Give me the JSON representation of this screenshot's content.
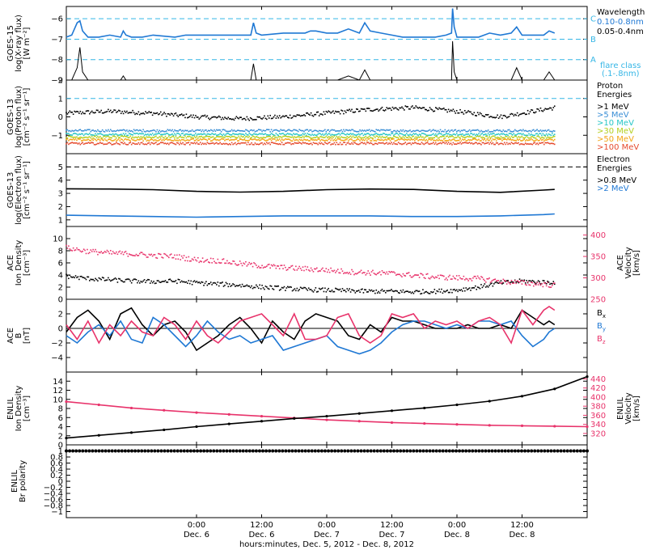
{
  "figure": {
    "x_axis": {
      "title": "hours:minutes, Dec.  5, 2012 - Dec.  8, 2012",
      "start_hour": 0,
      "end_hour": 96,
      "ticks": [
        {
          "hour": 24,
          "time": "0:00",
          "date": "Dec. 6"
        },
        {
          "hour": 36,
          "time": "12:00",
          "date": "Dec. 6"
        },
        {
          "hour": 48,
          "time": "0:00",
          "date": "Dec. 7"
        },
        {
          "hour": 60,
          "time": "12:00",
          "date": "Dec. 7"
        },
        {
          "hour": 72,
          "time": "0:00",
          "date": "Dec. 8"
        },
        {
          "hour": 84,
          "time": "12:00",
          "date": "Dec. 8"
        }
      ]
    },
    "colors": {
      "xray_long": "#1f78d4",
      "xray_short": "#000000",
      "ref_line": "#35b6e6",
      "electron_hi": "#1f78d4",
      "ace_velocity": "#e8336b",
      "by": "#1f78d4",
      "bz": "#e8336b"
    }
  },
  "chart_data": [
    {
      "id": "goes_xray",
      "type": "line",
      "ylabel": [
        "GOES-15",
        "log(X-ray flux)",
        "[W m⁻²]"
      ],
      "ylim": [
        -9,
        -5.4
      ],
      "yticks": [
        -9,
        -8,
        -7,
        -6
      ],
      "x_hours": [
        0,
        1,
        2,
        2.5,
        3,
        4,
        6,
        8,
        10,
        10.5,
        11,
        12,
        14,
        16,
        20,
        22,
        24,
        26,
        28,
        30,
        32,
        34,
        34.5,
        35,
        36,
        40,
        44,
        45,
        46,
        48,
        50,
        52,
        54,
        55,
        56,
        58,
        60,
        62,
        64,
        66,
        68,
        70,
        71,
        71.2,
        71.5,
        72,
        74,
        76,
        78,
        80,
        82,
        83,
        84,
        86,
        88,
        89,
        90
      ],
      "series": [
        {
          "name": "0.10-0.8nm",
          "color": "#1f78d4",
          "values": [
            -6.9,
            -6.8,
            -6.2,
            -6.1,
            -6.6,
            -6.9,
            -6.9,
            -6.8,
            -6.9,
            -6.6,
            -6.8,
            -6.9,
            -6.9,
            -6.8,
            -6.9,
            -6.8,
            -6.8,
            -6.8,
            -6.8,
            -6.8,
            -6.8,
            -6.8,
            -6.2,
            -6.7,
            -6.8,
            -6.7,
            -6.7,
            -6.6,
            -6.6,
            -6.7,
            -6.7,
            -6.5,
            -6.7,
            -6.2,
            -6.6,
            -6.7,
            -6.8,
            -6.9,
            -6.9,
            -6.9,
            -6.9,
            -6.8,
            -6.7,
            -5.5,
            -6.4,
            -6.9,
            -6.9,
            -6.9,
            -6.7,
            -6.8,
            -6.7,
            -6.4,
            -6.8,
            -6.8,
            -6.8,
            -6.6,
            -6.7
          ]
        },
        {
          "name": "0.05-0.4nm",
          "color": "#000000",
          "values": [
            -9,
            -9,
            -8.4,
            -7.4,
            -8.6,
            -9,
            -9,
            -9,
            -9,
            -8.8,
            -9,
            -9,
            -9,
            -9,
            -9,
            -9,
            -9,
            -9,
            -9,
            -9,
            -9,
            -9,
            -8.2,
            -9,
            -9,
            -9,
            -9,
            -9,
            -9,
            -9,
            -9,
            -8.8,
            -9,
            -8.5,
            -9,
            -9,
            -9,
            -9,
            -9,
            -9,
            -9,
            -9,
            -9,
            -7.1,
            -8.6,
            -9,
            -9,
            -9,
            -9,
            -9,
            -9,
            -8.4,
            -9,
            -9,
            -9,
            -8.6,
            -9
          ]
        }
      ],
      "reference_lines": [
        {
          "y": -6,
          "label": "C"
        },
        {
          "y": -7,
          "label": "B"
        },
        {
          "y": -8,
          "label": "A"
        }
      ],
      "legend": {
        "title": "Wavelength",
        "items": [
          "0.10-0.8nm",
          "0.05-0.4nm"
        ],
        "flare_label": [
          "flare class",
          "(.1-.8nm)"
        ]
      }
    },
    {
      "id": "goes_proton",
      "type": "scatter",
      "ylabel": [
        "GOES-13",
        "log(Proton flux)",
        "[cm⁻² s⁻¹ sr⁻¹]"
      ],
      "ylim": [
        -2,
        2
      ],
      "yticks": [
        -1,
        0,
        1,
        2
      ],
      "reference_lines": [
        {
          "y": 1
        }
      ],
      "x_hours": [
        0,
        8,
        16,
        24,
        32,
        40,
        48,
        56,
        64,
        72,
        80,
        88,
        90
      ],
      "series": [
        {
          "name": ">1 MeV",
          "color": "#000000",
          "values": [
            0.2,
            0.3,
            0.2,
            0.0,
            -0.1,
            0.0,
            0.2,
            0.4,
            0.5,
            0.3,
            0.0,
            0.4,
            0.5
          ]
        },
        {
          "name": ">5 MeV",
          "color": "#3a8fd6",
          "values": [
            -0.75,
            -0.75,
            -0.75,
            -0.75,
            -0.75,
            -0.75,
            -0.75,
            -0.75,
            -0.75,
            -0.75,
            -0.75,
            -0.75,
            -0.75
          ]
        },
        {
          "name": ">10 MeV",
          "color": "#27c6c6",
          "values": [
            -0.95,
            -0.95,
            -0.95,
            -0.95,
            -0.95,
            -0.95,
            -0.95,
            -0.95,
            -0.95,
            -0.95,
            -0.95,
            -0.95,
            -0.95
          ]
        },
        {
          "name": ">30 MeV",
          "color": "#b4cf1f",
          "values": [
            -1.1,
            -1.1,
            -1.1,
            -1.1,
            -1.1,
            -1.1,
            -1.1,
            -1.1,
            -1.1,
            -1.1,
            -1.1,
            -1.1,
            -1.1
          ]
        },
        {
          "name": ">50 MeV",
          "color": "#f2a515",
          "values": [
            -1.25,
            -1.25,
            -1.25,
            -1.25,
            -1.25,
            -1.25,
            -1.25,
            -1.25,
            -1.25,
            -1.25,
            -1.25,
            -1.25,
            -1.25
          ]
        },
        {
          "name": ">100 MeV",
          "color": "#e54a2e",
          "values": [
            -1.45,
            -1.45,
            -1.45,
            -1.45,
            -1.45,
            -1.45,
            -1.45,
            -1.45,
            -1.45,
            -1.45,
            -1.45,
            -1.45,
            -1.45
          ]
        }
      ],
      "legend": {
        "title": [
          "Proton",
          "Energies"
        ]
      }
    },
    {
      "id": "goes_electron",
      "type": "line",
      "ylabel": [
        "GOES-13",
        "log(Electron flux)",
        "[cm⁻² s⁻¹ sr⁻¹]"
      ],
      "ylim": [
        0.5,
        6
      ],
      "yticks": [
        1,
        2,
        3,
        4,
        5
      ],
      "reference_lines": [
        {
          "y": 5
        }
      ],
      "x_hours": [
        0,
        8,
        16,
        24,
        32,
        40,
        48,
        56,
        64,
        72,
        80,
        88,
        90
      ],
      "series": [
        {
          "name": ">0.8 MeV",
          "color": "#000000",
          "values": [
            3.35,
            3.33,
            3.28,
            3.15,
            3.1,
            3.15,
            3.28,
            3.33,
            3.3,
            3.15,
            3.08,
            3.25,
            3.3
          ]
        },
        {
          "name": ">2 MeV",
          "color": "#1f78d4",
          "values": [
            1.35,
            1.3,
            1.25,
            1.2,
            1.25,
            1.3,
            1.3,
            1.3,
            1.25,
            1.25,
            1.3,
            1.4,
            1.45
          ]
        }
      ],
      "legend": {
        "title": [
          "Electron",
          "Energies"
        ]
      }
    },
    {
      "id": "ace_plasma",
      "type": "scatter",
      "ylabel": [
        "ACE",
        "Ion Density",
        "[cm⁻³]"
      ],
      "ylabel_right": [
        "ACE",
        "Velocity",
        "[km/s]"
      ],
      "ylim": [
        0,
        12
      ],
      "yticks": [
        0,
        2,
        4,
        6,
        8,
        10
      ],
      "ylim_right": [
        250,
        420
      ],
      "yticks_right": [
        250,
        300,
        350,
        400
      ],
      "x_hours": [
        0,
        4,
        8,
        12,
        16,
        20,
        24,
        28,
        32,
        36,
        40,
        44,
        48,
        52,
        56,
        60,
        64,
        68,
        72,
        76,
        80,
        84,
        88,
        90
      ],
      "series": [
        {
          "name": "Density",
          "color": "#000000",
          "axis": "left",
          "values": [
            3.8,
            3.4,
            3.2,
            3.0,
            2.9,
            3.0,
            2.7,
            2.5,
            2.3,
            2.0,
            1.8,
            1.6,
            1.5,
            1.4,
            1.3,
            1.3,
            1.2,
            1.3,
            1.5,
            2.0,
            2.7,
            3.0,
            2.8,
            2.8
          ]
        },
        {
          "name": "Velocity",
          "color": "#e8336b",
          "axis": "right",
          "values": [
            370,
            362,
            358,
            356,
            352,
            350,
            342,
            340,
            333,
            328,
            324,
            321,
            318,
            314,
            312,
            310,
            306,
            302,
            300,
            298,
            292,
            288,
            285,
            282
          ]
        }
      ]
    },
    {
      "id": "ace_mag",
      "type": "line",
      "ylabel": [
        "ACE",
        "B",
        "[nT]"
      ],
      "ylim": [
        -6,
        4
      ],
      "yticks": [
        -4,
        -2,
        0,
        2
      ],
      "zero_line": true,
      "x_hours": [
        0,
        2,
        4,
        6,
        8,
        10,
        12,
        14,
        16,
        18,
        20,
        22,
        24,
        26,
        28,
        30,
        32,
        34,
        36,
        38,
        40,
        42,
        44,
        46,
        48,
        50,
        52,
        54,
        56,
        58,
        60,
        62,
        64,
        66,
        68,
        70,
        72,
        74,
        76,
        78,
        80,
        82,
        84,
        86,
        88,
        89,
        90
      ],
      "series": [
        {
          "name": "Bx",
          "color": "#000000",
          "values": [
            -0.5,
            1.5,
            2.5,
            1.0,
            -1.5,
            2.0,
            2.8,
            0.5,
            -1.0,
            0.5,
            1.0,
            -0.5,
            -3.0,
            -2.0,
            -1.0,
            0.5,
            1.5,
            0.0,
            -2.0,
            1.0,
            -0.5,
            -1.5,
            1.0,
            2.0,
            1.5,
            1.0,
            -1.0,
            -1.5,
            0.5,
            -0.5,
            1.5,
            1.0,
            1.0,
            0.5,
            0.0,
            0.0,
            0.0,
            0.5,
            0.0,
            0.0,
            0.5,
            0.0,
            2.5,
            1.5,
            0.5,
            1.0,
            0.5
          ]
        },
        {
          "name": "By",
          "color": "#1f78d4",
          "values": [
            -1.0,
            -2.0,
            -0.5,
            0.5,
            -1.0,
            1.0,
            -1.5,
            -2.0,
            1.5,
            0.5,
            -1.0,
            -2.5,
            -1.0,
            1.0,
            -0.5,
            -1.5,
            -1.0,
            -2.0,
            -1.5,
            -1.0,
            -3.0,
            -2.5,
            -2.0,
            -1.5,
            -1.0,
            -2.5,
            -3.0,
            -3.5,
            -3.0,
            -2.0,
            -0.5,
            0.5,
            1.0,
            1.0,
            0.5,
            0.0,
            0.5,
            0.0,
            1.0,
            1.0,
            0.5,
            1.0,
            -1.0,
            -2.5,
            -1.5,
            -0.5,
            0.0
          ]
        },
        {
          "name": "Bz",
          "color": "#e8336b",
          "values": [
            0.5,
            -1.5,
            1.0,
            -2.0,
            0.5,
            -1.0,
            1.0,
            -0.5,
            -1.0,
            1.5,
            0.5,
            -1.5,
            1.0,
            -1.0,
            -2.0,
            -0.5,
            1.0,
            1.5,
            2.0,
            0.5,
            -1.0,
            2.0,
            -1.5,
            -1.5,
            -1.0,
            1.5,
            2.0,
            -1.0,
            -2.0,
            -1.0,
            2.0,
            1.5,
            2.0,
            0.0,
            1.0,
            0.5,
            1.0,
            0.0,
            1.0,
            1.5,
            0.5,
            -2.0,
            2.5,
            0.5,
            2.5,
            3.0,
            2.5
          ]
        }
      ],
      "legend": {
        "items": [
          "Bx",
          "By",
          "Bz"
        ]
      }
    },
    {
      "id": "enlil_plasma",
      "type": "line",
      "ylabel": [
        "ENLIL",
        "Ion Density",
        "[cm⁻³]"
      ],
      "ylabel_right": [
        "ENLIL",
        "Velocity",
        "[km/s]"
      ],
      "ylim": [
        0,
        16
      ],
      "yticks": [
        0,
        2,
        4,
        6,
        8,
        10,
        12,
        14
      ],
      "ylim_right": [
        295,
        455
      ],
      "yticks_right": [
        320,
        340,
        360,
        380,
        400,
        420,
        440
      ],
      "x_hours": [
        0,
        6,
        12,
        18,
        24,
        30,
        36,
        42,
        48,
        54,
        60,
        66,
        72,
        78,
        84,
        90,
        96
      ],
      "series": [
        {
          "name": "Density",
          "color": "#e8336b",
          "axis": "left",
          "values": [
            9.5,
            8.8,
            8.1,
            7.6,
            7.1,
            6.7,
            6.3,
            5.9,
            5.5,
            5.2,
            4.9,
            4.7,
            4.5,
            4.3,
            4.2,
            4.1,
            4.0
          ]
        },
        {
          "name": "Velocity",
          "color": "#000000",
          "axis": "right",
          "values": [
            310,
            316,
            322,
            328,
            335,
            341,
            347,
            353,
            358,
            364,
            370,
            376,
            383,
            391,
            402,
            418,
            445
          ]
        }
      ]
    },
    {
      "id": "enlil_polarity",
      "type": "scatter",
      "ylabel": [
        "ENLIL",
        "Br polarity"
      ],
      "ylim": [
        -1.2,
        1.2
      ],
      "yticks": [
        -1.0,
        -0.8,
        -0.6,
        -0.4,
        -0.2,
        0.0,
        0.2,
        0.4,
        0.6,
        0.8,
        1.0
      ],
      "x_hours": [
        0,
        96
      ],
      "series": [
        {
          "name": "Polarity",
          "color": "#000000",
          "values": [
            1.0,
            1.0
          ]
        }
      ]
    }
  ]
}
